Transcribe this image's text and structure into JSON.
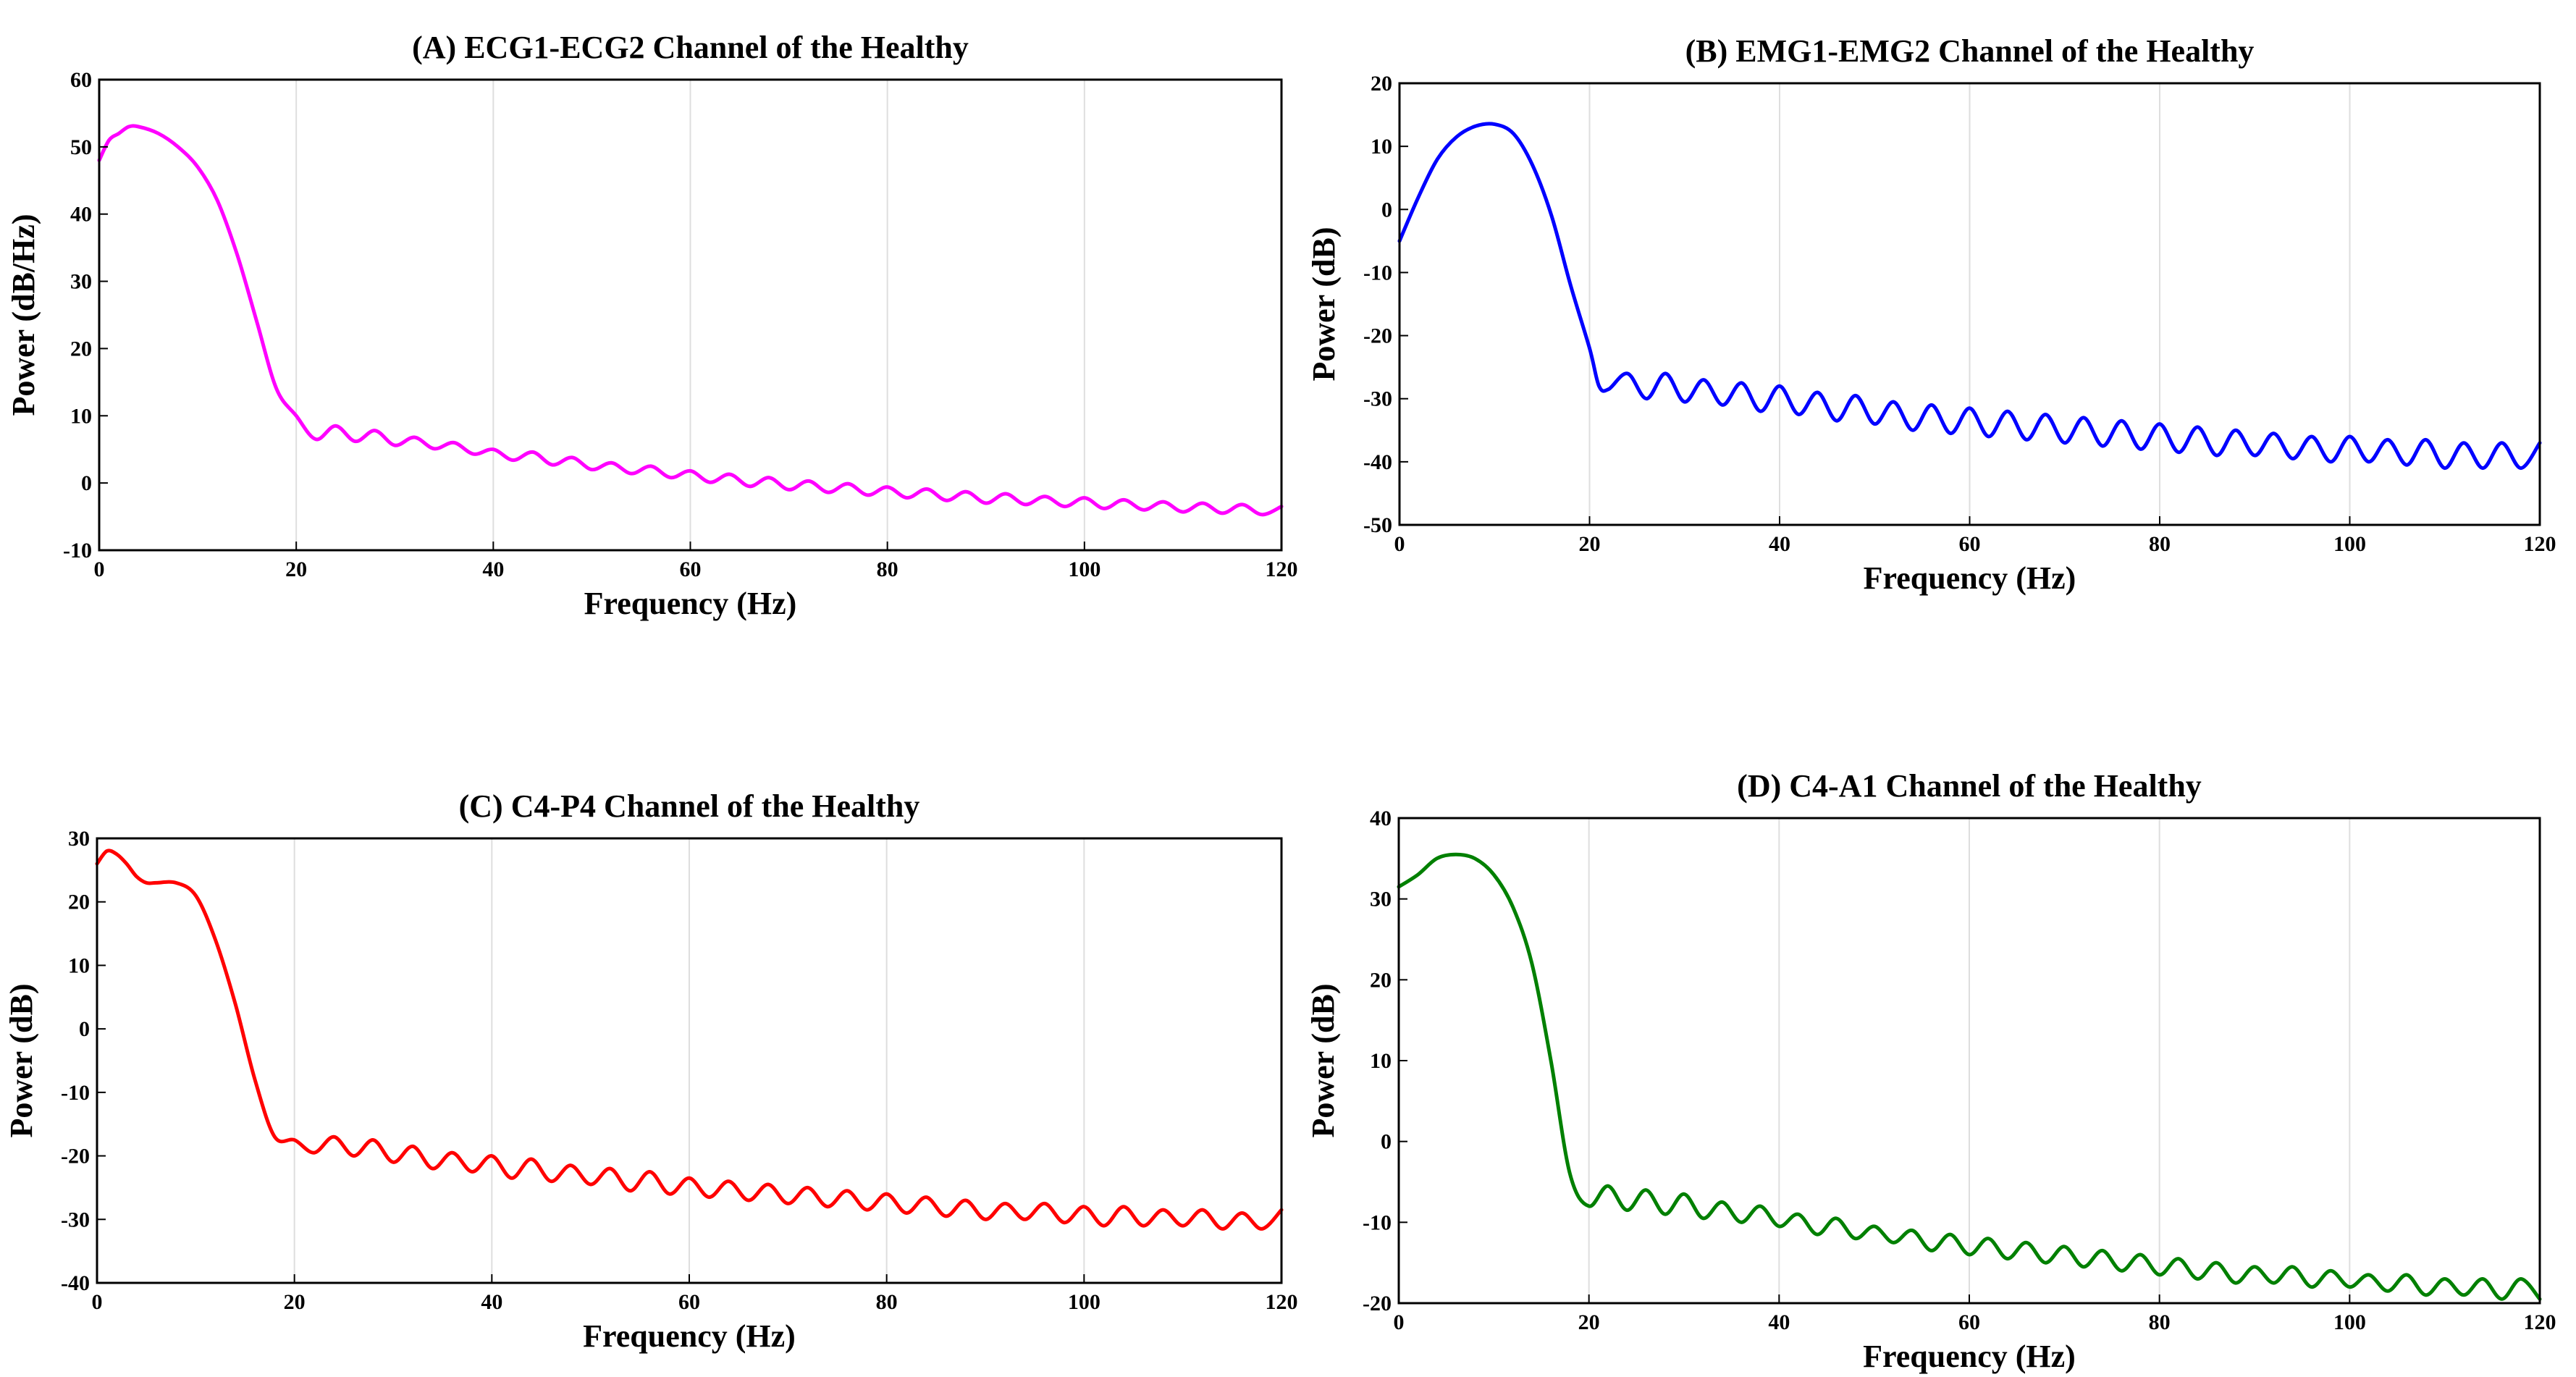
{
  "chart_data": [
    {
      "type": "line",
      "title": "(A) ECG1-ECG2 Channel of the Healthy",
      "xlabel": "Frequency (Hz)",
      "ylabel": "Power (dB/Hz)",
      "xlim": [
        0,
        120
      ],
      "ylim": [
        -10,
        60
      ],
      "xticks": [
        0,
        20,
        40,
        60,
        80,
        100,
        120
      ],
      "yticks": [
        -10,
        0,
        10,
        20,
        30,
        40,
        50,
        60
      ],
      "grid": "vertical",
      "color": "#ff00ff",
      "x": [
        0,
        1,
        2,
        3,
        4,
        6,
        8,
        10,
        12,
        14,
        16,
        18,
        20,
        22,
        24,
        26,
        28,
        30,
        32,
        34,
        36,
        38,
        40,
        42,
        44,
        46,
        48,
        50,
        52,
        54,
        56,
        58,
        60,
        62,
        64,
        66,
        68,
        70,
        72,
        74,
        76,
        78,
        80,
        82,
        84,
        86,
        88,
        90,
        92,
        94,
        96,
        98,
        100,
        102,
        104,
        106,
        108,
        110,
        112,
        114,
        116,
        118,
        120
      ],
      "y": [
        48,
        51,
        52,
        53,
        53,
        52,
        50,
        47,
        42,
        34,
        24,
        14,
        10,
        6.5,
        8.5,
        6.2,
        7.8,
        5.6,
        6.8,
        5.1,
        6.0,
        4.3,
        5.0,
        3.4,
        4.6,
        2.7,
        3.8,
        2.0,
        3.0,
        1.4,
        2.5,
        0.8,
        1.8,
        0.1,
        1.3,
        -0.5,
        0.8,
        -1.0,
        0.3,
        -1.4,
        -0.1,
        -1.8,
        -0.6,
        -2.2,
        -0.9,
        -2.6,
        -1.3,
        -3.0,
        -1.6,
        -3.2,
        -2.0,
        -3.5,
        -2.2,
        -3.8,
        -2.5,
        -4.0,
        -2.8,
        -4.3,
        -3.0,
        -4.5,
        -3.2,
        -4.7,
        -3.5
      ]
    },
    {
      "type": "line",
      "title": "(B) EMG1-EMG2 Channel of the Healthy",
      "xlabel": "Frequency (Hz)",
      "ylabel": "Power (dB)",
      "xlim": [
        0,
        120
      ],
      "ylim": [
        -50,
        20
      ],
      "xticks": [
        0,
        20,
        40,
        60,
        80,
        100,
        120
      ],
      "yticks": [
        -50,
        -40,
        -30,
        -20,
        -10,
        0,
        10,
        20
      ],
      "grid": "vertical",
      "color": "#0000ff",
      "x": [
        0,
        2,
        4,
        6,
        8,
        10,
        12,
        14,
        16,
        18,
        20,
        21,
        22,
        24,
        26,
        28,
        30,
        32,
        34,
        36,
        38,
        40,
        42,
        44,
        46,
        48,
        50,
        52,
        54,
        56,
        58,
        60,
        62,
        64,
        66,
        68,
        70,
        72,
        74,
        76,
        78,
        80,
        82,
        84,
        86,
        88,
        90,
        92,
        94,
        96,
        98,
        100,
        102,
        104,
        106,
        108,
        110,
        112,
        114,
        116,
        118,
        120
      ],
      "y": [
        -5,
        2,
        8,
        11.5,
        13.2,
        13.5,
        12,
        7,
        -1,
        -12,
        -22,
        -28,
        -28.5,
        -26,
        -30,
        -26,
        -30.5,
        -27,
        -31,
        -27.5,
        -32,
        -28,
        -32.5,
        -29,
        -33.5,
        -29.5,
        -34,
        -30.5,
        -35,
        -31,
        -35.5,
        -31.5,
        -36,
        -32,
        -36.5,
        -32.5,
        -37,
        -33,
        -37.5,
        -33.5,
        -38,
        -34,
        -38.5,
        -34.5,
        -39,
        -35,
        -39,
        -35.5,
        -39.5,
        -36,
        -40,
        -36,
        -40,
        -36.5,
        -40.5,
        -36.5,
        -41,
        -37,
        -41,
        -37,
        -41,
        -37
      ]
    },
    {
      "type": "line",
      "title": "(C) C4-P4 Channel of the Healthy",
      "xlabel": "Frequency (Hz)",
      "ylabel": "Power (dB)",
      "xlim": [
        0,
        120
      ],
      "ylim": [
        -40,
        30
      ],
      "xticks": [
        0,
        20,
        40,
        60,
        80,
        100,
        120
      ],
      "yticks": [
        -40,
        -30,
        -20,
        -10,
        0,
        10,
        20,
        30
      ],
      "grid": "vertical",
      "color": "#ff0000",
      "x": [
        0,
        1,
        2,
        3,
        4,
        5,
        6,
        8,
        10,
        12,
        14,
        16,
        18,
        20,
        22,
        24,
        26,
        28,
        30,
        32,
        34,
        36,
        38,
        40,
        42,
        44,
        46,
        48,
        50,
        52,
        54,
        56,
        58,
        60,
        62,
        64,
        66,
        68,
        70,
        72,
        74,
        76,
        78,
        80,
        82,
        84,
        86,
        88,
        90,
        92,
        94,
        96,
        98,
        100,
        102,
        104,
        106,
        108,
        110,
        112,
        114,
        116,
        118,
        120
      ],
      "y": [
        26,
        28,
        27.5,
        26,
        24,
        23,
        23,
        23,
        21,
        14,
        4,
        -8,
        -17,
        -17.5,
        -19.5,
        -17,
        -20,
        -17.5,
        -21,
        -18.5,
        -22,
        -19.5,
        -22.5,
        -20,
        -23.5,
        -20.5,
        -24,
        -21.5,
        -24.5,
        -22,
        -25.5,
        -22.5,
        -26,
        -23.5,
        -26.5,
        -24,
        -27,
        -24.5,
        -27.5,
        -25,
        -28,
        -25.5,
        -28.5,
        -26,
        -29,
        -26.5,
        -29.5,
        -27,
        -30,
        -27.5,
        -30,
        -27.5,
        -30.5,
        -28,
        -31,
        -28,
        -31,
        -28.5,
        -31,
        -28.5,
        -31.5,
        -29,
        -31.5,
        -28.5
      ]
    },
    {
      "type": "line",
      "title": "(D) C4-A1 Channel of the Healthy",
      "xlabel": "Frequency (Hz)",
      "ylabel": "Power (dB)",
      "xlim": [
        0,
        120
      ],
      "ylim": [
        -20,
        40
      ],
      "xticks": [
        0,
        20,
        40,
        60,
        80,
        100,
        120
      ],
      "yticks": [
        -20,
        -10,
        0,
        10,
        20,
        30,
        40
      ],
      "grid": "vertical",
      "color": "#008000",
      "x": [
        0,
        2,
        4,
        6,
        8,
        10,
        12,
        14,
        16,
        18,
        20,
        22,
        24,
        26,
        28,
        30,
        32,
        34,
        36,
        38,
        40,
        42,
        44,
        46,
        48,
        50,
        52,
        54,
        56,
        58,
        60,
        62,
        64,
        66,
        68,
        70,
        72,
        74,
        76,
        78,
        80,
        82,
        84,
        86,
        88,
        90,
        92,
        94,
        96,
        98,
        100,
        102,
        104,
        106,
        108,
        110,
        112,
        114,
        116,
        118,
        120
      ],
      "y": [
        31.5,
        33,
        35,
        35.5,
        35,
        33,
        29,
        22,
        10,
        -4,
        -8,
        -5.5,
        -8.5,
        -6,
        -9,
        -6.5,
        -9.5,
        -7.5,
        -10,
        -8,
        -10.5,
        -9,
        -11.5,
        -9.5,
        -12,
        -10.5,
        -12.5,
        -11,
        -13.5,
        -11.5,
        -14,
        -12,
        -14.5,
        -12.5,
        -15,
        -13,
        -15.5,
        -13.5,
        -16,
        -14,
        -16.5,
        -14.5,
        -17,
        -15,
        -17.5,
        -15.5,
        -17.5,
        -15.5,
        -18,
        -16,
        -18,
        -16.5,
        -18.5,
        -16.5,
        -19,
        -17,
        -19,
        -17,
        -19.5,
        -17,
        -19.5
      ]
    }
  ]
}
